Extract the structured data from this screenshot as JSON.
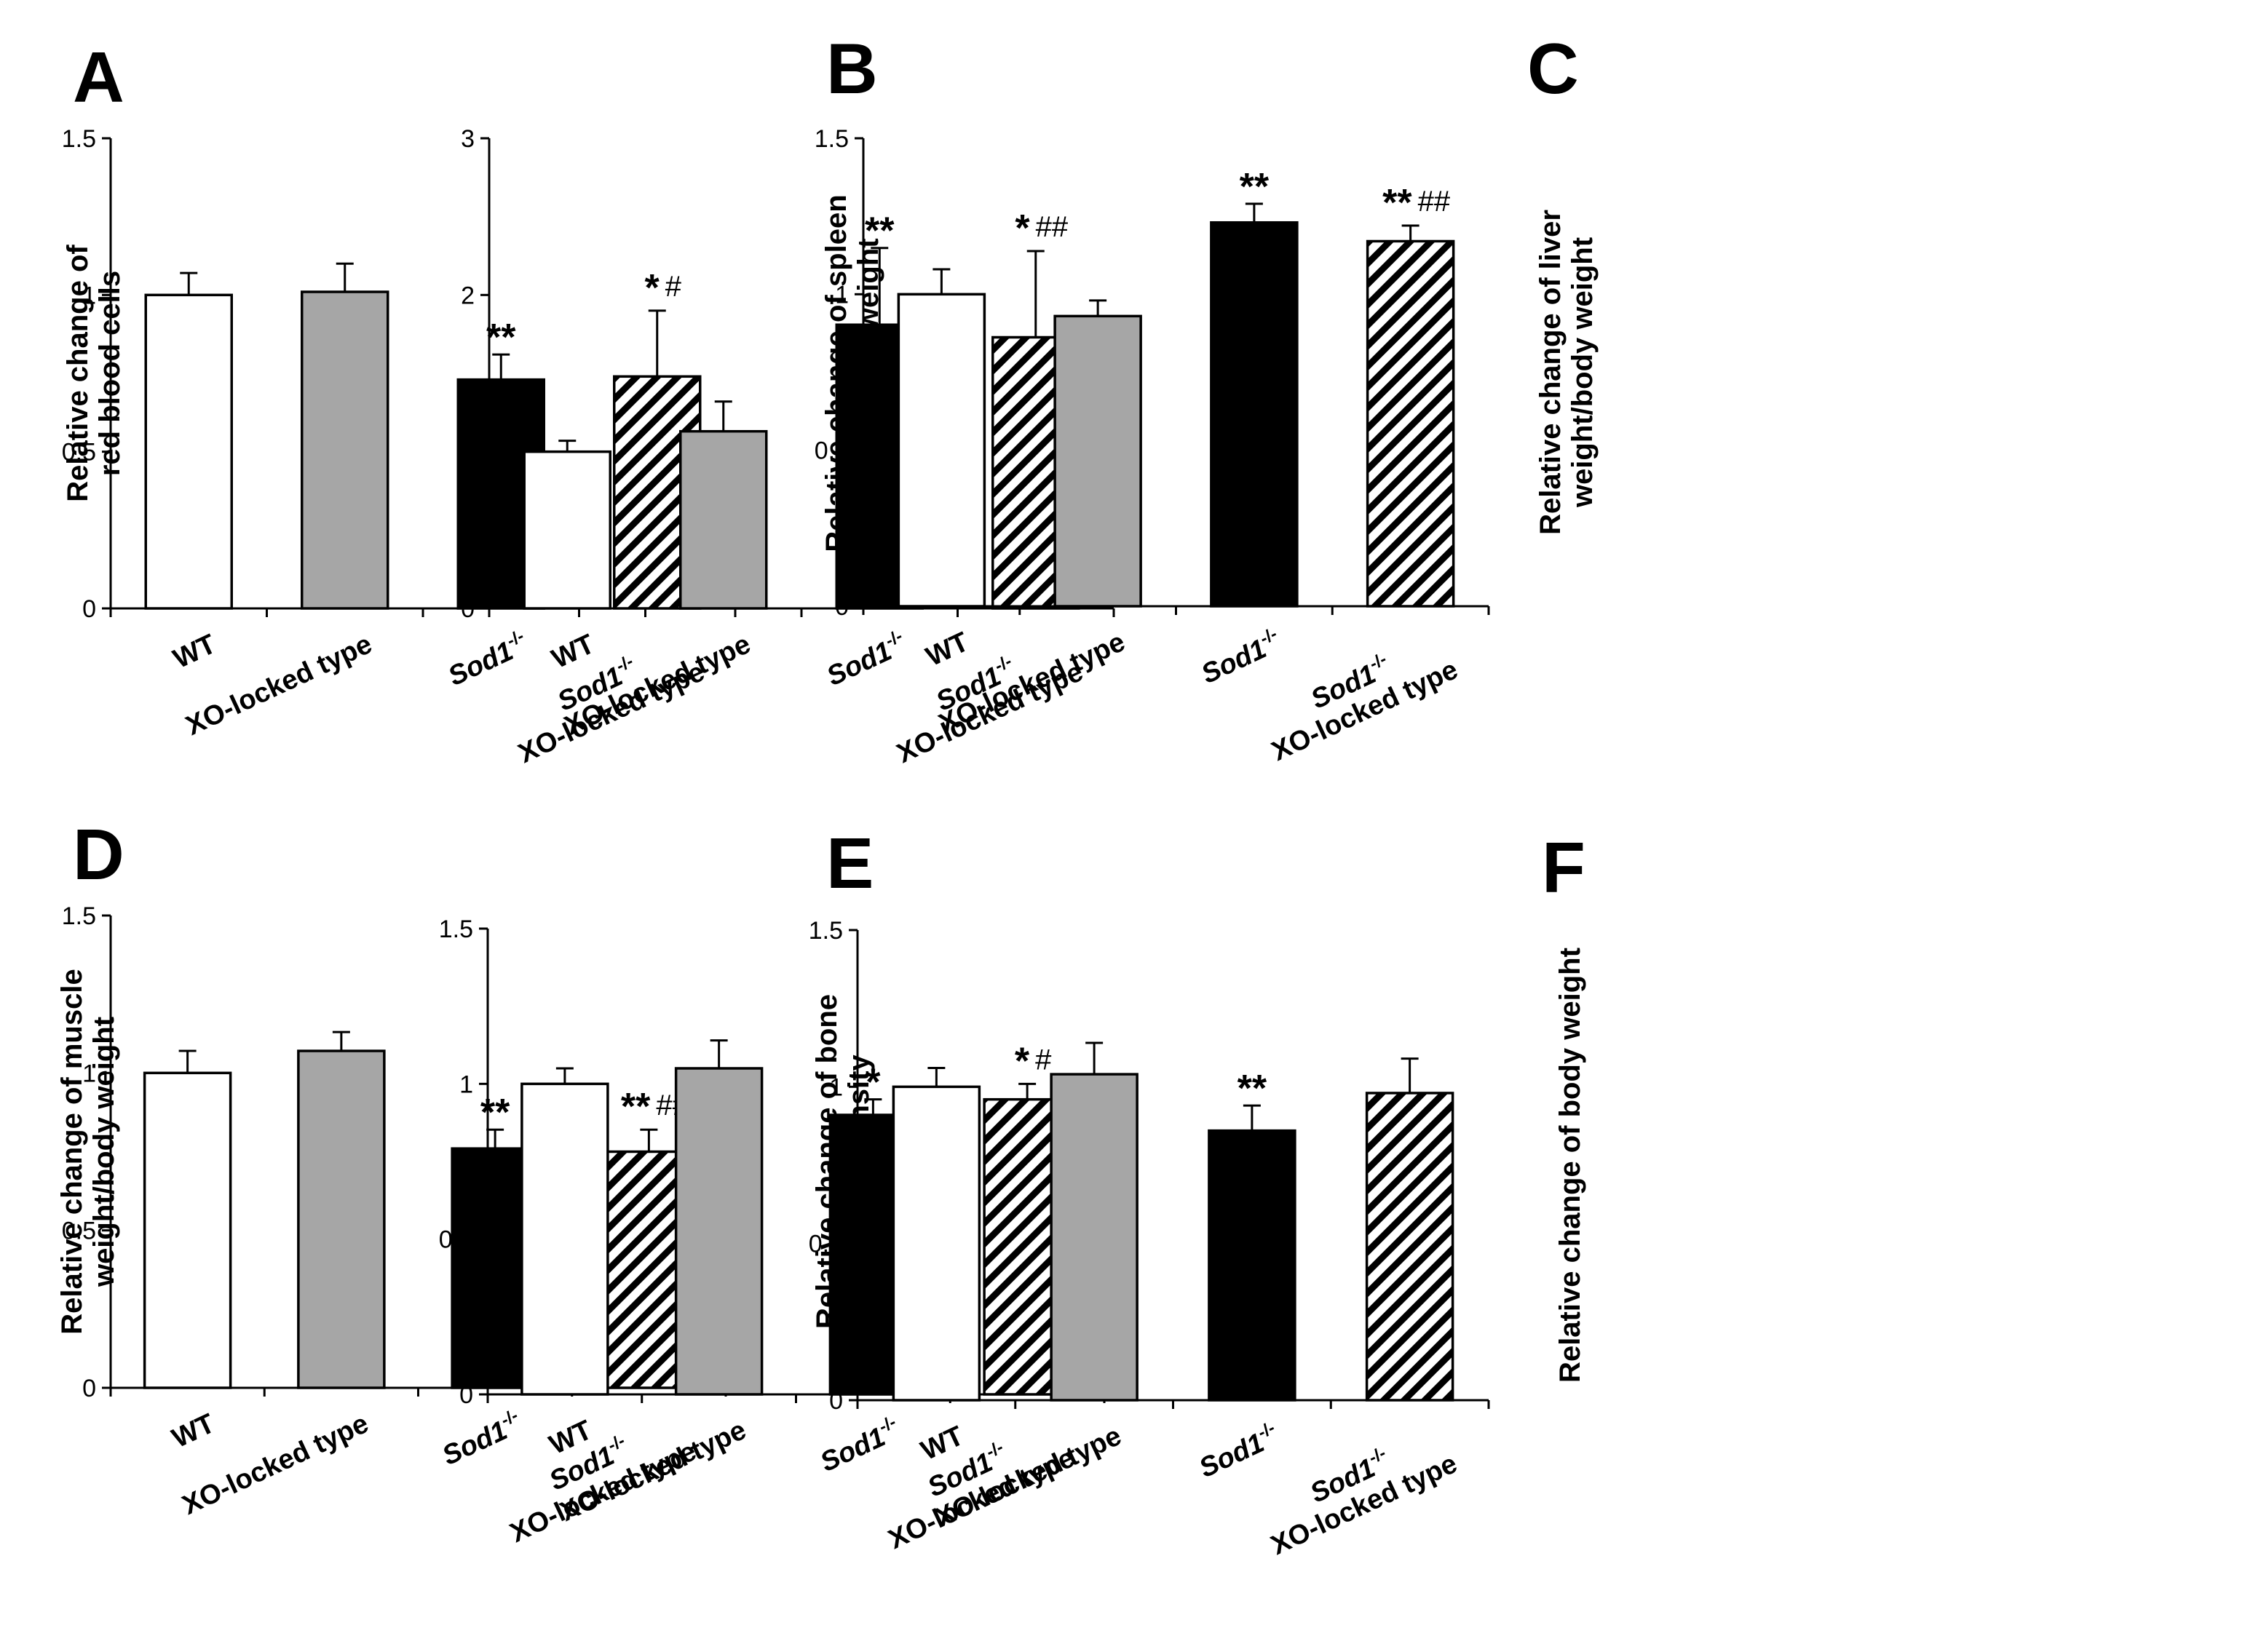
{
  "figure_categories": [
    "WT",
    "XO-locked type",
    "Sod1-/-",
    "Sod1-/- XO-locked type"
  ],
  "colors": {
    "wt": "#ffffff",
    "xo": "#a6a6a6",
    "sod1": "#000000",
    "hatch": "#000000"
  },
  "chart_data": [
    {
      "panel": "A",
      "type": "bar",
      "ylabel_lines": [
        "Relative change of",
        "red blood cells"
      ],
      "categories": [
        "WT",
        "XO-locked type",
        "Sod1-/-",
        "Sod1-/- XO-locked type"
      ],
      "values": [
        1.0,
        1.01,
        0.73,
        0.74
      ],
      "errors": [
        0.07,
        0.09,
        0.08,
        0.21
      ],
      "ylim": [
        0,
        1.5
      ],
      "yticks": [
        "0",
        "0.5",
        "1",
        "1.5"
      ],
      "significance": [
        "",
        "",
        "**",
        "*#"
      ]
    },
    {
      "panel": "B",
      "type": "bar",
      "ylabel_lines": [
        "Relative change of spleen",
        "weight/body weight"
      ],
      "categories": [
        "WT",
        "XO-locked type",
        "Sod1-/-",
        "Sod1-/- XO-locked type"
      ],
      "values": [
        1.0,
        1.13,
        1.81,
        1.73
      ],
      "errors": [
        0.07,
        0.19,
        0.49,
        0.55
      ],
      "ylim": [
        0,
        3
      ],
      "yticks": [
        "0",
        "1",
        "2",
        "3"
      ],
      "significance": [
        "",
        "",
        "**",
        "*##"
      ]
    },
    {
      "panel": "C",
      "type": "bar",
      "ylabel_lines": [
        "Relative change of liver",
        "weight/body weight"
      ],
      "categories": [
        "WT",
        "XO-locked type",
        "Sod1-/-",
        "Sod1-/- XO-locked type"
      ],
      "values": [
        1.0,
        0.93,
        1.23,
        1.17
      ],
      "errors": [
        0.08,
        0.05,
        0.06,
        0.05
      ],
      "ylim": [
        0,
        1.5
      ],
      "yticks": [
        "0",
        "0.5",
        "1",
        "1.5"
      ],
      "significance": [
        "",
        "",
        "**",
        "**##"
      ]
    },
    {
      "panel": "D",
      "type": "bar",
      "ylabel_lines": [
        "Relative change of muscle",
        "weight/body weight"
      ],
      "categories": [
        "WT",
        "XO-locked type",
        "Sod1-/-",
        "Sod1-/- XO-locked type"
      ],
      "values": [
        1.0,
        1.07,
        0.76,
        0.75
      ],
      "errors": [
        0.07,
        0.06,
        0.06,
        0.07
      ],
      "ylim": [
        0,
        1.5
      ],
      "yticks": [
        "0",
        "0.5",
        "1",
        "1.5"
      ],
      "significance": [
        "",
        "",
        "**",
        "**##"
      ]
    },
    {
      "panel": "E",
      "type": "bar",
      "ylabel_lines": [
        "Relative change of bone",
        "mineral density"
      ],
      "categories": [
        "WT",
        "XO-locked type",
        "Sod1-/-",
        "Sod1-/- XO-locked type"
      ],
      "values": [
        1.0,
        1.05,
        0.9,
        0.95
      ],
      "errors": [
        0.05,
        0.09,
        0.05,
        0.05
      ],
      "ylim": [
        0,
        1.5
      ],
      "yticks": [
        "0",
        "0.5",
        "1",
        "1.5"
      ],
      "significance": [
        "",
        "",
        "*",
        "*#"
      ]
    },
    {
      "panel": "F",
      "type": "bar",
      "ylabel_lines": [
        "Relative change of body weight"
      ],
      "categories": [
        "WT",
        "XO-locked type",
        "Sod1-/-",
        "Sod1-/- XO-locked type"
      ],
      "values": [
        1.0,
        1.04,
        0.86,
        0.98
      ],
      "errors": [
        0.06,
        0.1,
        0.08,
        0.11
      ],
      "ylim": [
        0,
        1.5
      ],
      "yticks": [
        "0",
        "0.5",
        "1",
        "1.5"
      ],
      "significance": [
        "",
        "",
        "**",
        ""
      ]
    }
  ]
}
